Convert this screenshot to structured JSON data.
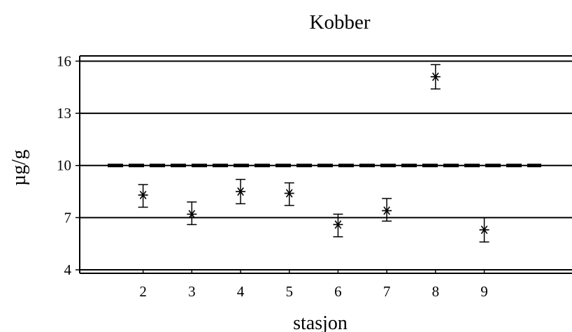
{
  "chart_data": {
    "type": "scatter",
    "title": "Kobber",
    "xlabel": "stasjon",
    "ylabel": "µg/g",
    "x_ticks": [
      "2",
      "3",
      "4",
      "5",
      "6",
      "7",
      "8",
      "9"
    ],
    "y_ticks": [
      4,
      7,
      10,
      13,
      16
    ],
    "xlim": [
      0.7,
      10.8
    ],
    "ylim": [
      3.8,
      16.3
    ],
    "grid": true,
    "reference_line": {
      "value": 10,
      "style": "dashed"
    },
    "series": [
      {
        "marker": "asterisk",
        "x": [
          2,
          3,
          4,
          5,
          6,
          7,
          8,
          9
        ],
        "y": [
          8.3,
          7.2,
          8.5,
          8.4,
          6.6,
          7.4,
          15.1,
          6.3
        ],
        "err_low": [
          7.6,
          6.6,
          7.8,
          7.7,
          5.9,
          6.8,
          14.4,
          5.6
        ],
        "err_high": [
          8.9,
          7.9,
          9.2,
          9.0,
          7.2,
          8.1,
          15.8,
          7.0
        ]
      }
    ]
  }
}
